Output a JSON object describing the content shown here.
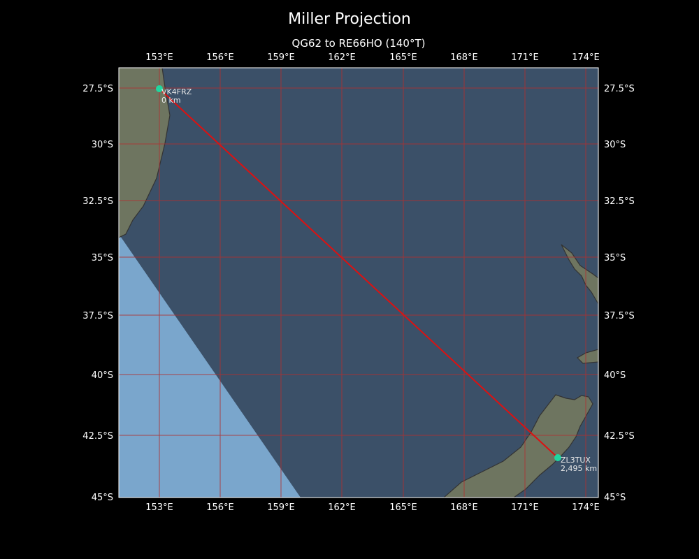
{
  "title": "Miller Projection",
  "subtitle": "QG62 to RE66HO (140°T)",
  "axes": {
    "lon_ticks": [
      "153°E",
      "156°E",
      "159°E",
      "162°E",
      "165°E",
      "168°E",
      "171°E",
      "174°E"
    ],
    "lat_ticks": [
      "27.5°S",
      "30°S",
      "32.5°S",
      "35°S",
      "37.5°S",
      "40°S",
      "42.5°S",
      "45°S"
    ]
  },
  "path": {
    "start": {
      "callsign": "VK4FRZ",
      "distance": "0 km",
      "lon": 153.0,
      "lat": -27.5
    },
    "end": {
      "callsign": "ZL3TUX",
      "distance": "2,495 km",
      "lon": 172.6,
      "lat": -43.5
    },
    "bearing": "140°T"
  },
  "colors": {
    "background": "#000000",
    "night_ocean": "#3b5068",
    "day_ocean": "#7aa6cc",
    "land": "#6e7560",
    "grid": "#b03030",
    "path": "#dd1111",
    "marker": "#20d7a0",
    "coastline": "#333333"
  }
}
